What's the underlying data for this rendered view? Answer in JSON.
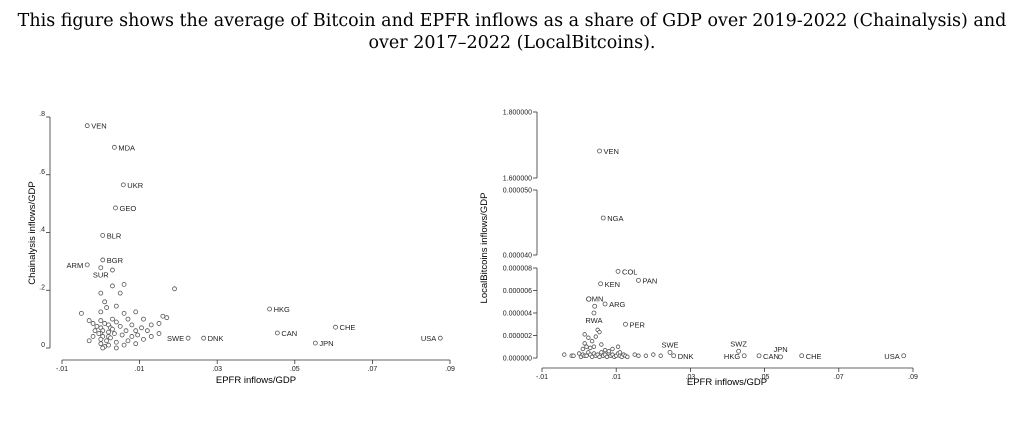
{
  "caption": {
    "line1": "This figure shows the average of Bitcoin and EPFR inflows as a share of GDP over 2019-2022 (Chainalysis) and",
    "line2": "over 2017–2022 (LocalBitcoins)."
  },
  "chart_data": [
    {
      "type": "scatter",
      "xlabel": "EPFR inflows/GDP",
      "ylabel": "Chainalysis inflows/GDP",
      "xlim": [
        -0.01,
        0.09
      ],
      "ylim": [
        0,
        0.8
      ],
      "xticks": [
        -0.01,
        0.01,
        0.03,
        0.05,
        0.07,
        0.09
      ],
      "xtick_labels": [
        "-.01",
        ".01",
        ".03",
        ".05",
        ".07",
        ".09"
      ],
      "yticks": [
        0,
        0.2,
        0.4,
        0.6,
        0.8
      ],
      "ytick_labels": [
        "0",
        ".2",
        ".4",
        ".6",
        ".8"
      ],
      "labeled_points": [
        {
          "label": "VEN",
          "x": -0.0035,
          "y": 0.77,
          "pos": "right"
        },
        {
          "label": "MDA",
          "x": 0.0035,
          "y": 0.695,
          "pos": "right"
        },
        {
          "label": "UKR",
          "x": 0.0058,
          "y": 0.565,
          "pos": "right"
        },
        {
          "label": "GEO",
          "x": 0.0038,
          "y": 0.485,
          "pos": "right"
        },
        {
          "label": "BLR",
          "x": 0.0005,
          "y": 0.39,
          "pos": "right"
        },
        {
          "label": "BGR",
          "x": 0.0005,
          "y": 0.305,
          "pos": "right"
        },
        {
          "label": "ARM",
          "x": -0.0035,
          "y": 0.288,
          "pos": "left"
        },
        {
          "label": "SUR",
          "x": 0.0,
          "y": 0.278,
          "pos": "below"
        },
        {
          "label": "HKG",
          "x": 0.0435,
          "y": 0.135,
          "pos": "right"
        },
        {
          "label": "CHE",
          "x": 0.0605,
          "y": 0.072,
          "pos": "right"
        },
        {
          "label": "CAN",
          "x": 0.0455,
          "y": 0.052,
          "pos": "right"
        },
        {
          "label": "SWE",
          "x": 0.0225,
          "y": 0.034,
          "pos": "left"
        },
        {
          "label": "DNK",
          "x": 0.0265,
          "y": 0.034,
          "pos": "right"
        },
        {
          "label": "USA",
          "x": 0.0875,
          "y": 0.034,
          "pos": "left"
        },
        {
          "label": "JPN",
          "x": 0.0553,
          "y": 0.017,
          "pos": "right"
        }
      ],
      "other_points": [
        [
          0.019,
          0.205
        ],
        [
          0.003,
          0.27
        ],
        [
          0.006,
          0.22
        ],
        [
          0.003,
          0.215
        ],
        [
          0.005,
          0.19
        ],
        [
          0.0,
          0.19
        ],
        [
          0.001,
          0.16
        ],
        [
          0.004,
          0.145
        ],
        [
          0.0015,
          0.14
        ],
        [
          0.0,
          0.125
        ],
        [
          -0.005,
          0.12
        ],
        [
          0.006,
          0.12
        ],
        [
          0.009,
          0.125
        ],
        [
          0.016,
          0.11
        ],
        [
          0.017,
          0.105
        ],
        [
          -0.003,
          0.095
        ],
        [
          0.0,
          0.095
        ],
        [
          0.003,
          0.1
        ],
        [
          0.007,
          0.1
        ],
        [
          0.011,
          0.1
        ],
        [
          -0.002,
          0.085
        ],
        [
          0.001,
          0.085
        ],
        [
          0.002,
          0.08
        ],
        [
          0.004,
          0.09
        ],
        [
          0.008,
          0.08
        ],
        [
          0.013,
          0.08
        ],
        [
          0.015,
          0.085
        ],
        [
          -0.001,
          0.075
        ],
        [
          0.0,
          0.07
        ],
        [
          0.0025,
          0.07
        ],
        [
          0.005,
          0.075
        ],
        [
          0.0105,
          0.07
        ],
        [
          0.003,
          0.065
        ],
        [
          -0.0015,
          0.06
        ],
        [
          0.0005,
          0.06
        ],
        [
          0.0065,
          0.06
        ],
        [
          0.009,
          0.06
        ],
        [
          0.012,
          0.06
        ],
        [
          0.002,
          0.055
        ],
        [
          0.0,
          0.05
        ],
        [
          0.0035,
          0.05
        ],
        [
          0.0055,
          0.045
        ],
        [
          0.015,
          0.05
        ],
        [
          -0.002,
          0.04
        ],
        [
          0.0005,
          0.04
        ],
        [
          0.002,
          0.04
        ],
        [
          0.008,
          0.04
        ],
        [
          0.013,
          0.04
        ],
        [
          0.0,
          0.03
        ],
        [
          0.0015,
          0.025
        ],
        [
          0.004,
          0.02
        ],
        [
          0.007,
          0.025
        ],
        [
          0.009,
          0.015
        ],
        [
          0.0,
          0.015
        ],
        [
          0.002,
          0.01
        ],
        [
          -0.003,
          0.025
        ],
        [
          0.011,
          0.03
        ],
        [
          0.006,
          0.01
        ],
        [
          0.001,
          0.005
        ],
        [
          0.004,
          0.0
        ],
        [
          0.0005,
          0.0
        ],
        [
          0.0025,
          0.035
        ],
        [
          -0.0005,
          0.05
        ],
        [
          0.0095,
          0.045
        ]
      ]
    },
    {
      "type": "scatter",
      "xlabel": "EPFR inflows/GDP",
      "ylabel": "LocalBitcoins inflows/GDP",
      "xlim": [
        -0.01,
        0.09
      ],
      "xticks": [
        -0.01,
        0.01,
        0.03,
        0.05,
        0.07,
        0.09
      ],
      "xtick_labels": [
        "-.01",
        ".01",
        ".03",
        ".05",
        ".07",
        ".09"
      ],
      "y_axis_break": true,
      "lower_ylim": [
        0,
        1e-05
      ],
      "upper_ylim": [
        5e-05,
        1.8
      ],
      "yticks": [
        0,
        2e-06,
        4e-06,
        6e-06,
        8e-06,
        4e-05,
        5e-05,
        1.6,
        1.8
      ],
      "ytick_labels": [
        "0.000000",
        "0.000002",
        "0.000004",
        "0.000006",
        "0.000008",
        "0.000040",
        "0.000050",
        "1.600000",
        "1.800000"
      ],
      "labeled_points": [
        {
          "label": "VEN",
          "x": 0.0055,
          "y_read": "upper ~1.7",
          "pos": "right"
        },
        {
          "label": "NGA",
          "x": 0.0065,
          "y_read": "upper ~0.000046",
          "pos": "right"
        },
        {
          "label": "COL",
          "x": 0.0105,
          "y": 7.7e-06,
          "pos": "right"
        },
        {
          "label": "PAN",
          "x": 0.016,
          "y": 6.9e-06,
          "pos": "right"
        },
        {
          "label": "KEN",
          "x": 0.0058,
          "y": 6.6e-06,
          "pos": "right"
        },
        {
          "label": "OMN",
          "x": 0.0042,
          "y": 4.6e-06,
          "pos": "above"
        },
        {
          "label": "ARG",
          "x": 0.007,
          "y": 4.8e-06,
          "pos": "right"
        },
        {
          "label": "RWA",
          "x": 0.004,
          "y": 4e-06,
          "pos": "below"
        },
        {
          "label": "PER",
          "x": 0.0125,
          "y": 3e-06,
          "pos": "right"
        },
        {
          "label": "SWE",
          "x": 0.0245,
          "y": 5e-07,
          "pos": "above"
        },
        {
          "label": "DNK",
          "x": 0.0255,
          "y": 2e-07,
          "pos": "right"
        },
        {
          "label": "SWZ",
          "x": 0.043,
          "y": 6e-07,
          "pos": "above"
        },
        {
          "label": "HKG",
          "x": 0.0445,
          "y": 2e-07,
          "pos": "left"
        },
        {
          "label": "CAN",
          "x": 0.0485,
          "y": 2e-07,
          "pos": "right"
        },
        {
          "label": "JPN",
          "x": 0.0543,
          "y": 1e-07,
          "pos": "above"
        },
        {
          "label": "CHE",
          "x": 0.06,
          "y": 2e-07,
          "pos": "right"
        },
        {
          "label": "USA",
          "x": 0.0875,
          "y": 2e-07,
          "pos": "left"
        }
      ],
      "other_points": [
        [
          -0.004,
          3e-07
        ],
        [
          -0.002,
          2e-07
        ],
        [
          -0.0015,
          2e-07
        ],
        [
          0.0,
          4e-07
        ],
        [
          0.0005,
          1e-07
        ],
        [
          0.001,
          3e-07
        ],
        [
          0.0015,
          2e-07
        ],
        [
          0.002,
          2e-07
        ],
        [
          0.0025,
          5e-07
        ],
        [
          0.003,
          3e-07
        ],
        [
          0.0035,
          1e-07
        ],
        [
          0.004,
          4e-07
        ],
        [
          0.0045,
          2e-07
        ],
        [
          0.005,
          3e-07
        ],
        [
          0.0055,
          1e-07
        ],
        [
          0.006,
          5e-07
        ],
        [
          0.0065,
          2e-07
        ],
        [
          0.007,
          3e-07
        ],
        [
          0.0075,
          1e-07
        ],
        [
          0.008,
          4e-07
        ],
        [
          0.0085,
          2e-07
        ],
        [
          0.009,
          3e-07
        ],
        [
          0.0095,
          1e-07
        ],
        [
          0.01,
          2e-07
        ],
        [
          0.0105,
          4e-07
        ],
        [
          0.011,
          2e-07
        ],
        [
          0.0115,
          1e-07
        ],
        [
          0.012,
          3e-07
        ],
        [
          0.0125,
          2e-07
        ],
        [
          0.013,
          1e-07
        ],
        [
          0.015,
          3e-07
        ],
        [
          0.016,
          2e-07
        ],
        [
          0.018,
          2e-07
        ],
        [
          0.02,
          3e-07
        ],
        [
          0.022,
          2e-07
        ],
        [
          0.001,
          8e-07
        ],
        [
          0.002,
          1e-06
        ],
        [
          0.003,
          9e-07
        ],
        [
          0.0015,
          1.3e-06
        ],
        [
          0.0035,
          1.5e-06
        ],
        [
          0.0025,
          1.8e-06
        ],
        [
          0.0045,
          1.9e-06
        ],
        [
          0.005,
          2.5e-06
        ],
        [
          0.0055,
          2.3e-06
        ],
        [
          0.0015,
          2.1e-06
        ],
        [
          0.007,
          7e-07
        ],
        [
          0.008,
          6e-07
        ],
        [
          0.009,
          8e-07
        ],
        [
          0.011,
          5e-07
        ],
        [
          0.0105,
          1e-06
        ],
        [
          0.006,
          1.2e-06
        ],
        [
          0.004,
          1e-06
        ]
      ]
    }
  ]
}
